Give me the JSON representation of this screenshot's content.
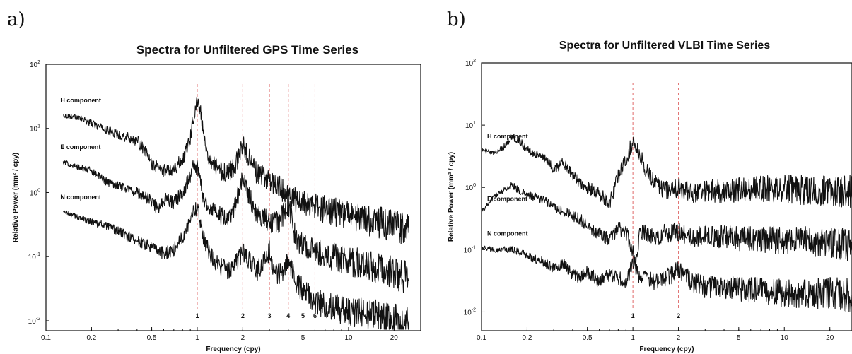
{
  "chart_data": [
    {
      "panel": "a)",
      "type": "line",
      "title": "Spectra for Unfiltered GPS Time Series",
      "xlabel": "Frequency (cpy)",
      "ylabel": "Relative Power (mm² / cpy)",
      "xscale": "log",
      "yscale": "log",
      "xlim": [
        0.1,
        30
      ],
      "ylim": [
        0.007,
        100
      ],
      "x_ticks": [
        "0.1",
        "0.2",
        "0.5",
        "1",
        "2",
        "5",
        "10",
        "20"
      ],
      "y_ticks": [
        {
          "base": "10",
          "exp": "2",
          "value": 100
        },
        {
          "base": "10",
          "exp": "1",
          "value": 10
        },
        {
          "base": "10",
          "exp": "0",
          "value": 1
        },
        {
          "base": "10",
          "exp": "-1",
          "value": 0.1
        },
        {
          "base": "10",
          "exp": "-2",
          "value": 0.01
        }
      ],
      "reference_lines": [
        {
          "x": 1,
          "label": "1"
        },
        {
          "x": 2,
          "label": "2"
        },
        {
          "x": 3,
          "label": "3"
        },
        {
          "x": 4,
          "label": "4"
        },
        {
          "x": 5,
          "label": "5"
        },
        {
          "x": 6,
          "label": "6"
        }
      ],
      "series": [
        {
          "name": "H component",
          "x": [
            0.13,
            0.16,
            0.2,
            0.25,
            0.3,
            0.4,
            0.45,
            0.5,
            0.6,
            0.7,
            0.8,
            0.9,
            0.95,
            1.0,
            1.05,
            1.1,
            1.2,
            1.4,
            1.6,
            1.8,
            2.0,
            2.2,
            2.5,
            3.0,
            3.5,
            4.0,
            4.5,
            5.0,
            6.0,
            8.0,
            10.0,
            15.0,
            20.0,
            25.0
          ],
          "y": [
            16,
            15,
            12,
            9.5,
            8,
            6.5,
            4.5,
            2.8,
            2.2,
            2.4,
            3.2,
            7.5,
            16,
            28,
            18,
            8,
            3.5,
            2.2,
            2.0,
            2.8,
            5.5,
            3.5,
            1.9,
            1.6,
            1.2,
            0.9,
            0.75,
            0.7,
            0.6,
            0.5,
            0.45,
            0.35,
            0.3,
            0.28
          ]
        },
        {
          "name": "E component",
          "x": [
            0.13,
            0.16,
            0.2,
            0.25,
            0.3,
            0.4,
            0.5,
            0.55,
            0.6,
            0.7,
            0.8,
            0.9,
            0.95,
            1.0,
            1.05,
            1.1,
            1.2,
            1.4,
            1.6,
            1.8,
            2.0,
            2.2,
            2.5,
            3.0,
            3.5,
            4.0,
            4.5,
            5.0,
            6.0,
            8.0,
            10.0,
            15.0,
            20.0,
            25.0
          ],
          "y": [
            3.0,
            2.5,
            2.2,
            1.5,
            1.3,
            1.0,
            0.75,
            0.55,
            0.8,
            0.7,
            1.0,
            1.8,
            2.8,
            2.4,
            1.5,
            0.8,
            0.6,
            0.45,
            0.35,
            0.7,
            1.6,
            0.9,
            0.45,
            0.35,
            0.35,
            0.7,
            0.18,
            0.15,
            0.12,
            0.1,
            0.085,
            0.07,
            0.055,
            0.045
          ]
        },
        {
          "name": "N component",
          "x": [
            0.13,
            0.16,
            0.2,
            0.25,
            0.3,
            0.4,
            0.5,
            0.6,
            0.7,
            0.8,
            0.9,
            0.95,
            1.0,
            1.05,
            1.1,
            1.2,
            1.4,
            1.6,
            1.8,
            2.0,
            2.2,
            2.5,
            3.0,
            3.2,
            3.5,
            4.0,
            4.5,
            5.0,
            6.0,
            8.0,
            10.0,
            15.0,
            20.0,
            25.0
          ],
          "y": [
            0.5,
            0.42,
            0.35,
            0.3,
            0.25,
            0.18,
            0.14,
            0.11,
            0.13,
            0.2,
            0.4,
            0.6,
            0.55,
            0.35,
            0.2,
            0.12,
            0.07,
            0.06,
            0.08,
            0.12,
            0.09,
            0.06,
            0.12,
            0.07,
            0.05,
            0.09,
            0.04,
            0.03,
            0.02,
            0.016,
            0.014,
            0.012,
            0.01,
            0.009
          ]
        }
      ]
    },
    {
      "panel": "b)",
      "type": "line",
      "title": "Spectra for Unfiltered VLBI Time Series",
      "xlabel": "Frequency (cpy)",
      "ylabel": "Relative Power (mm² / cpy)",
      "xscale": "log",
      "yscale": "log",
      "xlim": [
        0.1,
        28
      ],
      "ylim": [
        0.005,
        100
      ],
      "x_ticks": [
        "0.1",
        "0.2",
        "0.5",
        "1",
        "2",
        "5",
        "10",
        "20"
      ],
      "y_ticks": [
        {
          "base": "10",
          "exp": "2",
          "value": 100
        },
        {
          "base": "10",
          "exp": "1",
          "value": 10
        },
        {
          "base": "10",
          "exp": "0",
          "value": 1
        },
        {
          "base": "10",
          "exp": "-1",
          "value": 0.1
        },
        {
          "base": "10",
          "exp": "-2",
          "value": 0.01
        }
      ],
      "reference_lines": [
        {
          "x": 1,
          "label": "1"
        },
        {
          "x": 2,
          "label": "2"
        }
      ],
      "series": [
        {
          "name": "H component",
          "x": [
            0.1,
            0.12,
            0.14,
            0.16,
            0.18,
            0.2,
            0.25,
            0.3,
            0.35,
            0.4,
            0.45,
            0.5,
            0.6,
            0.7,
            0.8,
            0.9,
            1.0,
            1.1,
            1.2,
            1.4,
            1.6,
            2.0,
            2.5,
            3.0,
            4.0,
            5.0,
            7.0,
            10.0,
            15.0,
            20.0,
            28.0
          ],
          "y": [
            4.0,
            3.5,
            4.5,
            6.5,
            5.5,
            4.0,
            3.2,
            2.0,
            2.5,
            1.6,
            1.2,
            1.0,
            0.8,
            0.55,
            1.5,
            2.8,
            5.5,
            3.5,
            2.0,
            1.3,
            0.9,
            1.0,
            0.8,
            0.9,
            0.85,
            0.9,
            0.95,
            0.95,
            0.9,
            0.9,
            0.85
          ]
        },
        {
          "name": "E component",
          "x": [
            0.1,
            0.12,
            0.14,
            0.16,
            0.18,
            0.2,
            0.25,
            0.3,
            0.35,
            0.4,
            0.45,
            0.5,
            0.6,
            0.7,
            0.8,
            0.9,
            0.95,
            1.0,
            1.05,
            1.1,
            1.2,
            1.4,
            1.6,
            2.0,
            2.5,
            3.0,
            4.0,
            5.0,
            7.0,
            10.0,
            15.0,
            20.0,
            28.0
          ],
          "y": [
            0.4,
            0.7,
            0.9,
            1.1,
            0.85,
            0.75,
            0.65,
            0.5,
            0.4,
            0.35,
            0.3,
            0.25,
            0.18,
            0.15,
            0.22,
            0.18,
            0.14,
            0.09,
            0.06,
            0.16,
            0.2,
            0.15,
            0.18,
            0.2,
            0.15,
            0.17,
            0.16,
            0.15,
            0.15,
            0.14,
            0.14,
            0.13,
            0.12
          ]
        },
        {
          "name": "N component",
          "x": [
            0.1,
            0.12,
            0.14,
            0.16,
            0.18,
            0.2,
            0.25,
            0.3,
            0.35,
            0.4,
            0.45,
            0.5,
            0.6,
            0.7,
            0.8,
            0.9,
            1.0,
            1.1,
            1.2,
            1.4,
            1.6,
            2.0,
            2.5,
            3.0,
            4.0,
            5.0,
            7.0,
            10.0,
            15.0,
            20.0,
            28.0
          ],
          "y": [
            0.11,
            0.1,
            0.1,
            0.1,
            0.09,
            0.08,
            0.065,
            0.05,
            0.06,
            0.04,
            0.035,
            0.045,
            0.03,
            0.04,
            0.035,
            0.03,
            0.06,
            0.035,
            0.04,
            0.03,
            0.035,
            0.045,
            0.03,
            0.025,
            0.025,
            0.023,
            0.022,
            0.02,
            0.02,
            0.02,
            0.018
          ]
        }
      ]
    }
  ]
}
